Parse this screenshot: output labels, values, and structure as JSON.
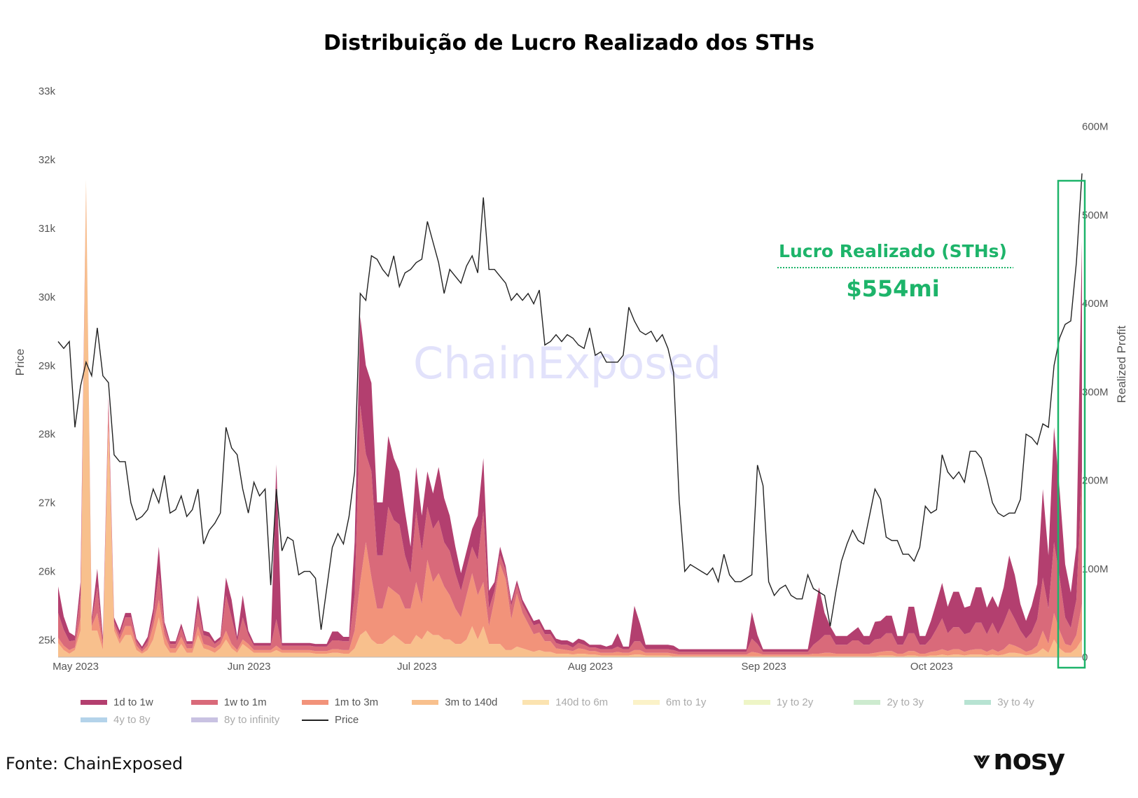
{
  "title": "Distribuição de Lucro Realizado dos STHs",
  "source": "Fonte: ChainExposed",
  "logo": {
    "text": "nosy",
    "mark": "⩔"
  },
  "watermark": "ChainExposed",
  "annotation": {
    "label": "Lucro Realizado (STHs)",
    "value": "$554mi",
    "color": "#1db46a"
  },
  "colors": {
    "d1_1w": "#b33f6f",
    "w1_1m": "#d96a7a",
    "m1_3m": "#f2937a",
    "m3_140d": "#f8c08d",
    "price": "#222222"
  },
  "chart_data": {
    "type": "area",
    "title": "Distribuição de Lucro Realizado dos STHs",
    "y_left": {
      "label": "Price",
      "range": [
        24750,
        33000
      ],
      "ticks": [
        "25k",
        "26k",
        "27k",
        "28k",
        "29k",
        "30k",
        "31k",
        "32k",
        "33k"
      ]
    },
    "y_right": {
      "label": "Realized Profit",
      "range": [
        0,
        640
      ],
      "ticks": [
        "0",
        "100M",
        "200M",
        "300M",
        "400M",
        "500M",
        "600M"
      ]
    },
    "x_ticks": [
      "May 2023",
      "Jun 2023",
      "Jul 2023",
      "Aug 2023",
      "Sep 2023",
      "Oct 2023"
    ],
    "legend": [
      {
        "name": "1d to 1w",
        "color": "#b33f6f",
        "active": true
      },
      {
        "name": "1w to 1m",
        "color": "#d96a7a",
        "active": true
      },
      {
        "name": "1m to 3m",
        "color": "#f2937a",
        "active": true
      },
      {
        "name": "3m to 140d",
        "color": "#f8c08d",
        "active": true
      },
      {
        "name": "140d to 6m",
        "color": "#fbe3b0",
        "active": false
      },
      {
        "name": "6m to 1y",
        "color": "#fbf2c8",
        "active": false
      },
      {
        "name": "1y to 2y",
        "color": "#eef5c6",
        "active": false
      },
      {
        "name": "2y to 3y",
        "color": "#cdebcf",
        "active": false
      },
      {
        "name": "3y to 4y",
        "color": "#b7e3d2",
        "active": false
      },
      {
        "name": "4y to 8y",
        "color": "#b4d3ea",
        "active": false
      },
      {
        "name": "8y to infinity",
        "color": "#c9c2e2",
        "active": false
      },
      {
        "name": "Price",
        "color": "#222222",
        "active": true,
        "line": true
      }
    ],
    "price": [
      29.35,
      29.25,
      29.35,
      28.1,
      28.7,
      29.05,
      28.85,
      29.55,
      28.85,
      28.75,
      27.7,
      27.6,
      27.6,
      27.0,
      26.75,
      26.8,
      26.9,
      27.2,
      27.0,
      27.4,
      26.85,
      26.9,
      27.1,
      26.8,
      26.9,
      27.2,
      26.4,
      26.6,
      26.7,
      26.85,
      28.1,
      27.8,
      27.7,
      27.2,
      26.85,
      27.3,
      27.1,
      27.2,
      25.8,
      27.2,
      26.3,
      26.5,
      26.45,
      25.95,
      26.0,
      26.0,
      25.9,
      25.15,
      25.75,
      26.35,
      26.55,
      26.4,
      26.8,
      27.45,
      30.05,
      29.95,
      30.6,
      30.55,
      30.4,
      30.3,
      30.6,
      30.15,
      30.35,
      30.4,
      30.5,
      30.55,
      31.1,
      30.8,
      30.5,
      30.05,
      30.4,
      30.3,
      30.2,
      30.45,
      30.6,
      30.35,
      31.45,
      30.4,
      30.4,
      30.3,
      30.2,
      29.95,
      30.05,
      29.95,
      30.05,
      29.9,
      30.1,
      29.3,
      29.35,
      29.45,
      29.35,
      29.45,
      29.4,
      29.3,
      29.25,
      29.55,
      29.15,
      29.2,
      29.05,
      29.05,
      29.05,
      29.15,
      29.85,
      29.65,
      29.5,
      29.45,
      29.5,
      29.35,
      29.45,
      29.25,
      28.9,
      27.05,
      26.0,
      26.1,
      26.05,
      26.0,
      25.95,
      26.05,
      25.85,
      26.25,
      25.95,
      25.85,
      25.85,
      25.9,
      25.95,
      27.55,
      27.25,
      25.85,
      25.65,
      25.75,
      25.8,
      25.65,
      25.6,
      25.6,
      25.95,
      25.75,
      25.7,
      25.65,
      25.2,
      25.7,
      26.15,
      26.4,
      26.6,
      26.45,
      26.4,
      26.8,
      27.2,
      27.05,
      26.5,
      26.45,
      26.45,
      26.25,
      26.25,
      26.15,
      26.35,
      26.95,
      26.85,
      26.9,
      27.7,
      27.45,
      27.35,
      27.45,
      27.3,
      27.75,
      27.75,
      27.65,
      27.35,
      27.0,
      26.85,
      26.8,
      26.85,
      26.85,
      27.05,
      28.0,
      27.95,
      27.85,
      28.15,
      28.1,
      29.0,
      29.4,
      29.6,
      29.65,
      30.5,
      31.8
    ],
    "series": [
      {
        "name": "3m to 140d",
        "values": [
          16,
          8,
          4,
          8,
          30,
          540,
          30,
          30,
          8,
          260,
          30,
          15,
          25,
          25,
          8,
          4,
          8,
          20,
          45,
          15,
          5,
          5,
          15,
          5,
          5,
          25,
          10,
          8,
          5,
          10,
          20,
          10,
          5,
          15,
          10,
          5,
          5,
          5,
          5,
          8,
          5,
          5,
          5,
          5,
          5,
          5,
          4,
          4,
          4,
          5,
          5,
          4,
          4,
          10,
          25,
          30,
          20,
          15,
          15,
          20,
          25,
          20,
          15,
          15,
          25,
          20,
          30,
          25,
          25,
          20,
          20,
          15,
          15,
          20,
          35,
          20,
          35,
          15,
          15,
          15,
          8,
          8,
          12,
          10,
          8,
          6,
          8,
          6,
          6,
          4,
          4,
          4,
          3,
          4,
          4,
          3,
          3,
          2,
          2,
          2,
          2,
          2,
          2,
          3,
          3,
          2,
          2,
          2,
          2,
          2,
          1,
          1,
          1,
          1,
          1,
          1,
          1,
          1,
          1,
          1,
          1,
          1,
          1,
          1,
          1,
          1,
          1,
          1,
          1,
          1,
          1,
          1,
          1,
          1,
          1,
          1,
          1,
          1,
          1,
          1,
          1,
          1,
          1,
          1,
          1,
          1,
          1,
          2,
          2,
          2,
          1,
          1,
          2,
          2,
          1,
          1,
          2,
          2,
          3,
          2,
          3,
          3,
          2,
          3,
          3,
          3,
          2,
          3,
          2,
          3,
          5,
          5,
          4,
          2,
          3,
          5,
          10,
          5,
          20,
          10,
          5,
          5,
          10,
          20
        ]
      },
      {
        "name": "1m to 3m",
        "values": [
          6,
          5,
          4,
          3,
          15,
          0,
          5,
          20,
          5,
          15,
          5,
          5,
          10,
          10,
          5,
          2,
          5,
          15,
          20,
          10,
          5,
          5,
          8,
          5,
          5,
          10,
          5,
          5,
          5,
          5,
          10,
          5,
          3,
          5,
          5,
          3,
          3,
          3,
          3,
          5,
          3,
          3,
          3,
          3,
          3,
          3,
          3,
          3,
          3,
          4,
          4,
          4,
          4,
          20,
          60,
          100,
          70,
          40,
          40,
          60,
          50,
          50,
          40,
          40,
          60,
          40,
          80,
          60,
          70,
          60,
          50,
          40,
          30,
          50,
          60,
          50,
          50,
          20,
          50,
          90,
          80,
          35,
          60,
          40,
          30,
          20,
          20,
          12,
          12,
          6,
          5,
          4,
          4,
          6,
          5,
          4,
          4,
          3,
          3,
          3,
          4,
          3,
          3,
          5,
          5,
          3,
          3,
          3,
          3,
          3,
          3,
          2,
          2,
          2,
          2,
          2,
          2,
          2,
          2,
          2,
          2,
          2,
          2,
          2,
          5,
          4,
          2,
          2,
          2,
          2,
          2,
          2,
          2,
          2,
          2,
          3,
          3,
          4,
          4,
          3,
          3,
          3,
          3,
          3,
          3,
          3,
          4,
          4,
          5,
          5,
          3,
          3,
          5,
          5,
          3,
          3,
          4,
          5,
          6,
          5,
          6,
          6,
          4,
          5,
          6,
          6,
          4,
          6,
          4,
          6,
          10,
          8,
          6,
          4,
          5,
          8,
          20,
          10,
          30,
          20,
          10,
          8,
          15,
          40
        ]
      },
      {
        "name": "1w to 1m",
        "values": [
          28,
          18,
          10,
          8,
          25,
          0,
          5,
          30,
          5,
          15,
          5,
          5,
          10,
          10,
          5,
          3,
          5,
          10,
          30,
          10,
          5,
          5,
          10,
          5,
          5,
          20,
          10,
          10,
          5,
          5,
          40,
          30,
          10,
          25,
          10,
          5,
          5,
          5,
          5,
          30,
          5,
          5,
          5,
          5,
          5,
          5,
          5,
          5,
          5,
          10,
          10,
          10,
          10,
          40,
          200,
          100,
          120,
          60,
          60,
          90,
          80,
          80,
          60,
          40,
          80,
          60,
          60,
          60,
          60,
          50,
          50,
          40,
          30,
          30,
          30,
          40,
          80,
          20,
          10,
          10,
          10,
          15,
          10,
          10,
          10,
          10,
          10,
          8,
          8,
          6,
          5,
          6,
          4,
          6,
          5,
          4,
          4,
          4,
          4,
          4,
          6,
          4,
          4,
          10,
          10,
          4,
          4,
          4,
          4,
          4,
          4,
          3,
          3,
          3,
          3,
          3,
          3,
          3,
          3,
          3,
          3,
          3,
          3,
          3,
          15,
          10,
          3,
          3,
          3,
          3,
          3,
          3,
          3,
          3,
          3,
          10,
          15,
          20,
          20,
          10,
          10,
          10,
          15,
          15,
          10,
          10,
          15,
          15,
          20,
          20,
          10,
          10,
          20,
          20,
          10,
          10,
          15,
          25,
          35,
          20,
          25,
          25,
          20,
          20,
          30,
          30,
          20,
          30,
          20,
          30,
          40,
          30,
          20,
          15,
          20,
          30,
          60,
          40,
          80,
          60,
          30,
          20,
          40,
          150
        ]
      },
      {
        "name": "1d to 1w",
        "values": [
          30,
          15,
          10,
          5,
          15,
          0,
          5,
          20,
          5,
          5,
          5,
          5,
          5,
          5,
          3,
          3,
          5,
          10,
          30,
          5,
          3,
          3,
          5,
          3,
          3,
          15,
          5,
          5,
          3,
          3,
          20,
          20,
          5,
          25,
          5,
          3,
          3,
          3,
          3,
          175,
          3,
          3,
          3,
          3,
          3,
          3,
          3,
          3,
          3,
          10,
          10,
          5,
          5,
          60,
          100,
          100,
          100,
          60,
          60,
          80,
          70,
          60,
          50,
          30,
          50,
          40,
          40,
          40,
          60,
          50,
          40,
          30,
          20,
          20,
          20,
          50,
          60,
          20,
          10,
          10,
          5,
          5,
          5,
          5,
          5,
          5,
          5,
          5,
          5,
          5,
          5,
          5,
          5,
          5,
          5,
          3,
          3,
          5,
          3,
          5,
          15,
          3,
          3,
          40,
          20,
          5,
          5,
          5,
          5,
          5,
          5,
          3,
          3,
          3,
          3,
          3,
          3,
          3,
          3,
          3,
          3,
          3,
          3,
          3,
          30,
          10,
          3,
          3,
          3,
          3,
          3,
          3,
          3,
          3,
          3,
          30,
          60,
          25,
          10,
          10,
          10,
          10,
          10,
          15,
          10,
          10,
          20,
          20,
          20,
          20,
          10,
          10,
          30,
          30,
          10,
          10,
          20,
          30,
          40,
          30,
          40,
          40,
          30,
          30,
          40,
          40,
          30,
          30,
          30,
          40,
          60,
          50,
          30,
          20,
          30,
          40,
          100,
          60,
          130,
          100,
          60,
          40,
          60,
          260
        ]
      }
    ]
  }
}
